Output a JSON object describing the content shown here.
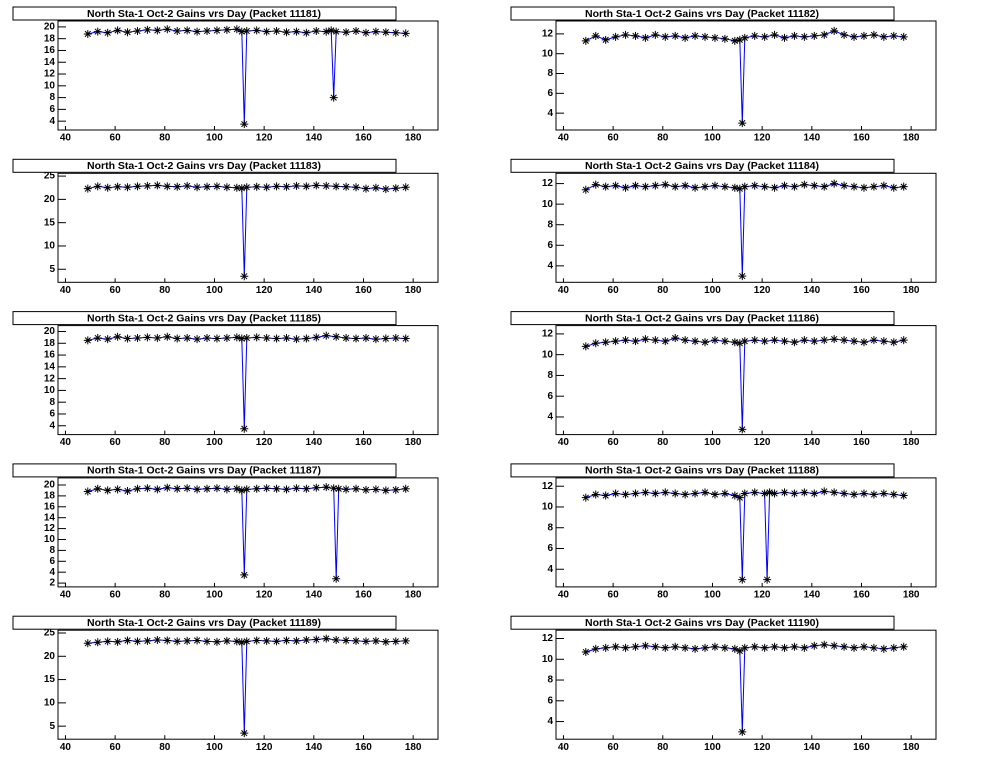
{
  "chart_data": [
    {
      "type": "line",
      "title": "North Sta-1 Oct-2 Gains vrs Day (Packet 11181)",
      "line_color": "#0000ff",
      "marker_color": "#000000",
      "x": [
        49,
        53,
        57,
        61,
        65,
        69,
        73,
        77,
        81,
        85,
        89,
        93,
        97,
        101,
        105,
        109,
        111,
        112,
        113,
        117,
        121,
        125,
        129,
        133,
        137,
        141,
        145,
        147,
        148,
        149,
        153,
        157,
        161,
        165,
        169,
        173,
        177
      ],
      "values": [
        18.8,
        19.2,
        19.0,
        19.4,
        19.1,
        19.3,
        19.5,
        19.4,
        19.6,
        19.3,
        19.4,
        19.2,
        19.3,
        19.4,
        19.5,
        19.6,
        19.2,
        3.5,
        19.3,
        19.4,
        19.2,
        19.3,
        19.1,
        19.2,
        19.0,
        19.3,
        19.2,
        19.4,
        8.0,
        19.2,
        19.1,
        19.3,
        19.0,
        19.2,
        19.1,
        19.0,
        18.9
      ],
      "xlim": [
        37,
        190
      ],
      "xticks": [
        40,
        60,
        80,
        100,
        120,
        140,
        160,
        180
      ],
      "ylim": [
        2.5,
        21
      ],
      "yticks": [
        4,
        6,
        8,
        10,
        12,
        14,
        16,
        18,
        20
      ]
    },
    {
      "type": "line",
      "title": "North Sta-1 Oct-2 Gains vrs Day (Packet 11182)",
      "line_color": "#0000ff",
      "marker_color": "#000000",
      "x": [
        49,
        53,
        57,
        61,
        65,
        69,
        73,
        77,
        81,
        85,
        89,
        93,
        97,
        101,
        105,
        109,
        111,
        112,
        113,
        117,
        121,
        125,
        129,
        133,
        137,
        141,
        145,
        149,
        153,
        157,
        161,
        165,
        169,
        173,
        177
      ],
      "values": [
        11.3,
        11.8,
        11.4,
        11.7,
        11.9,
        11.8,
        11.6,
        11.9,
        11.7,
        11.8,
        11.6,
        11.8,
        11.7,
        11.6,
        11.5,
        11.3,
        11.4,
        3.0,
        11.6,
        11.8,
        11.7,
        11.9,
        11.6,
        11.8,
        11.7,
        11.8,
        11.9,
        12.3,
        11.9,
        11.7,
        11.8,
        11.9,
        11.7,
        11.8,
        11.7
      ],
      "xlim": [
        37,
        190
      ],
      "xticks": [
        40,
        60,
        80,
        100,
        120,
        140,
        160,
        180
      ],
      "ylim": [
        2.3,
        13.3
      ],
      "yticks": [
        4,
        6,
        8,
        10,
        12
      ]
    },
    {
      "type": "line",
      "title": "North Sta-1 Oct-2 Gains vrs Day (Packet 11183)",
      "line_color": "#0000ff",
      "marker_color": "#000000",
      "x": [
        49,
        53,
        57,
        61,
        65,
        69,
        73,
        77,
        81,
        85,
        89,
        93,
        97,
        101,
        105,
        109,
        111,
        112,
        113,
        117,
        121,
        125,
        129,
        133,
        137,
        141,
        145,
        149,
        153,
        157,
        161,
        165,
        169,
        173,
        177
      ],
      "values": [
        22.3,
        22.8,
        22.5,
        22.7,
        22.6,
        22.8,
        22.9,
        23.0,
        22.8,
        22.7,
        22.9,
        22.6,
        22.7,
        22.8,
        22.6,
        22.5,
        22.4,
        3.5,
        22.6,
        22.7,
        22.6,
        22.8,
        22.7,
        22.9,
        22.8,
        23.0,
        22.9,
        22.8,
        22.7,
        22.6,
        22.3,
        22.5,
        22.2,
        22.4,
        22.6
      ],
      "xlim": [
        37,
        190
      ],
      "xticks": [
        40,
        60,
        80,
        100,
        120,
        140,
        160,
        180
      ],
      "ylim": [
        2.2,
        25.6
      ],
      "yticks": [
        5,
        10,
        15,
        20,
        25
      ]
    },
    {
      "type": "line",
      "title": "North Sta-1 Oct-2 Gains vrs Day (Packet 11184)",
      "line_color": "#0000ff",
      "marker_color": "#000000",
      "x": [
        49,
        53,
        57,
        61,
        65,
        69,
        73,
        77,
        81,
        85,
        89,
        93,
        97,
        101,
        105,
        109,
        111,
        112,
        113,
        117,
        121,
        125,
        129,
        133,
        137,
        141,
        145,
        149,
        153,
        157,
        161,
        165,
        169,
        173,
        177
      ],
      "values": [
        11.4,
        11.9,
        11.7,
        11.8,
        11.6,
        11.8,
        11.7,
        11.8,
        11.9,
        11.7,
        11.8,
        11.6,
        11.7,
        11.8,
        11.7,
        11.6,
        11.5,
        3.0,
        11.7,
        11.8,
        11.7,
        11.6,
        11.8,
        11.7,
        11.9,
        11.8,
        11.7,
        12.0,
        11.8,
        11.7,
        11.6,
        11.7,
        11.8,
        11.6,
        11.7
      ],
      "xlim": [
        37,
        190
      ],
      "xticks": [
        40,
        60,
        80,
        100,
        120,
        140,
        160,
        180
      ],
      "ylim": [
        2.4,
        13.0
      ],
      "yticks": [
        4,
        6,
        8,
        10,
        12
      ]
    },
    {
      "type": "line",
      "title": "North Sta-1 Oct-2 Gains vrs Day (Packet 11185)",
      "line_color": "#0000ff",
      "marker_color": "#000000",
      "x": [
        49,
        53,
        57,
        61,
        65,
        69,
        73,
        77,
        81,
        85,
        89,
        93,
        97,
        101,
        105,
        109,
        111,
        112,
        113,
        117,
        121,
        125,
        129,
        133,
        137,
        141,
        145,
        149,
        153,
        157,
        161,
        165,
        169,
        173,
        177
      ],
      "values": [
        18.5,
        18.9,
        18.7,
        19.1,
        18.8,
        18.9,
        19.0,
        18.9,
        19.1,
        18.8,
        18.9,
        18.7,
        18.9,
        18.8,
        18.9,
        19.0,
        18.8,
        3.5,
        18.9,
        19.0,
        18.9,
        18.8,
        18.9,
        18.7,
        18.8,
        19.0,
        19.3,
        19.1,
        18.9,
        18.8,
        18.9,
        18.7,
        18.8,
        18.9,
        18.8
      ],
      "xlim": [
        37,
        190
      ],
      "xticks": [
        40,
        60,
        80,
        100,
        120,
        140,
        160,
        180
      ],
      "ylim": [
        2.5,
        21
      ],
      "yticks": [
        4,
        6,
        8,
        10,
        12,
        14,
        16,
        18,
        20
      ]
    },
    {
      "type": "line",
      "title": "North Sta-1 Oct-2 Gains vrs Day (Packet 11186)",
      "line_color": "#0000ff",
      "marker_color": "#000000",
      "x": [
        49,
        53,
        57,
        61,
        65,
        69,
        73,
        77,
        81,
        85,
        89,
        93,
        97,
        101,
        105,
        109,
        111,
        112,
        113,
        117,
        121,
        125,
        129,
        133,
        137,
        141,
        145,
        149,
        153,
        157,
        161,
        165,
        169,
        173,
        177
      ],
      "values": [
        10.8,
        11.1,
        11.2,
        11.3,
        11.4,
        11.3,
        11.5,
        11.4,
        11.3,
        11.6,
        11.4,
        11.3,
        11.2,
        11.4,
        11.3,
        11.2,
        11.1,
        2.8,
        11.3,
        11.4,
        11.3,
        11.4,
        11.3,
        11.2,
        11.4,
        11.3,
        11.4,
        11.5,
        11.4,
        11.3,
        11.2,
        11.4,
        11.3,
        11.2,
        11.4
      ],
      "xlim": [
        37,
        190
      ],
      "xticks": [
        40,
        60,
        80,
        100,
        120,
        140,
        160,
        180
      ],
      "ylim": [
        2.3,
        12.8
      ],
      "yticks": [
        4,
        6,
        8,
        10,
        12
      ]
    },
    {
      "type": "line",
      "title": "North Sta-1 Oct-2 Gains vrs Day (Packet 11187)",
      "line_color": "#0000ff",
      "marker_color": "#000000",
      "x": [
        49,
        53,
        57,
        61,
        65,
        69,
        73,
        77,
        81,
        85,
        89,
        93,
        97,
        101,
        105,
        109,
        111,
        112,
        113,
        117,
        121,
        125,
        129,
        133,
        137,
        141,
        145,
        148,
        149,
        150,
        153,
        157,
        161,
        165,
        169,
        173,
        177
      ],
      "values": [
        18.8,
        19.3,
        19.0,
        19.2,
        18.9,
        19.3,
        19.4,
        19.2,
        19.5,
        19.3,
        19.4,
        19.2,
        19.3,
        19.4,
        19.2,
        19.3,
        19.0,
        3.5,
        19.2,
        19.3,
        19.4,
        19.3,
        19.2,
        19.4,
        19.3,
        19.5,
        19.6,
        19.4,
        2.8,
        19.3,
        19.2,
        19.3,
        19.1,
        19.2,
        19.0,
        19.1,
        19.3
      ],
      "xlim": [
        37,
        190
      ],
      "xticks": [
        40,
        60,
        80,
        100,
        120,
        140,
        160,
        180
      ],
      "ylim": [
        1.3,
        21.3
      ],
      "yticks": [
        2,
        4,
        6,
        8,
        10,
        12,
        14,
        16,
        18,
        20
      ]
    },
    {
      "type": "line",
      "title": "North Sta-1 Oct-2 Gains vrs Day (Packet 11188)",
      "line_color": "#0000ff",
      "marker_color": "#000000",
      "x": [
        49,
        53,
        57,
        61,
        65,
        69,
        73,
        77,
        81,
        85,
        89,
        93,
        97,
        101,
        105,
        109,
        111,
        112,
        113,
        117,
        121,
        122,
        123,
        125,
        129,
        133,
        137,
        141,
        145,
        149,
        153,
        157,
        161,
        165,
        169,
        173,
        177
      ],
      "values": [
        10.9,
        11.2,
        11.1,
        11.3,
        11.2,
        11.3,
        11.4,
        11.3,
        11.4,
        11.3,
        11.2,
        11.3,
        11.4,
        11.2,
        11.3,
        11.1,
        10.9,
        3.0,
        11.3,
        11.4,
        11.3,
        3.0,
        11.4,
        11.3,
        11.4,
        11.3,
        11.4,
        11.3,
        11.5,
        11.4,
        11.3,
        11.2,
        11.3,
        11.2,
        11.3,
        11.2,
        11.1
      ],
      "xlim": [
        37,
        190
      ],
      "xticks": [
        40,
        60,
        80,
        100,
        120,
        140,
        160,
        180
      ],
      "ylim": [
        2.3,
        12.8
      ],
      "yticks": [
        4,
        6,
        8,
        10,
        12
      ]
    },
    {
      "type": "line",
      "title": "North Sta-1 Oct-2 Gains vrs Day (Packet 11189)",
      "line_color": "#0000ff",
      "marker_color": "#000000",
      "x": [
        49,
        53,
        57,
        61,
        65,
        69,
        73,
        77,
        81,
        85,
        89,
        93,
        97,
        101,
        105,
        109,
        111,
        112,
        113,
        117,
        121,
        125,
        129,
        133,
        137,
        141,
        145,
        149,
        153,
        157,
        161,
        165,
        169,
        173,
        177
      ],
      "values": [
        22.8,
        23.0,
        23.2,
        23.1,
        23.4,
        23.2,
        23.3,
        23.5,
        23.4,
        23.2,
        23.3,
        23.4,
        23.2,
        23.1,
        23.3,
        23.2,
        23.0,
        3.5,
        23.2,
        23.4,
        23.3,
        23.2,
        23.4,
        23.3,
        23.5,
        23.6,
        23.8,
        23.5,
        23.4,
        23.3,
        23.2,
        23.3,
        23.1,
        23.2,
        23.3
      ],
      "xlim": [
        37,
        190
      ],
      "xticks": [
        40,
        60,
        80,
        100,
        120,
        140,
        160,
        180
      ],
      "ylim": [
        2.2,
        25.6
      ],
      "yticks": [
        5,
        10,
        15,
        20,
        25
      ]
    },
    {
      "type": "line",
      "title": "North Sta-1 Oct-2 Gains vrs Day (Packet 11190)",
      "line_color": "#0000ff",
      "marker_color": "#000000",
      "x": [
        49,
        53,
        57,
        61,
        65,
        69,
        73,
        77,
        81,
        85,
        89,
        93,
        97,
        101,
        105,
        109,
        111,
        112,
        113,
        117,
        121,
        125,
        129,
        133,
        137,
        141,
        145,
        149,
        153,
        157,
        161,
        165,
        169,
        173,
        177
      ],
      "values": [
        10.7,
        11.0,
        11.1,
        11.2,
        11.1,
        11.2,
        11.3,
        11.2,
        11.1,
        11.2,
        11.1,
        11.0,
        11.1,
        11.2,
        11.1,
        11.0,
        10.8,
        3.0,
        11.1,
        11.2,
        11.1,
        11.2,
        11.1,
        11.2,
        11.1,
        11.3,
        11.4,
        11.3,
        11.2,
        11.1,
        11.2,
        11.1,
        11.0,
        11.1,
        11.2
      ],
      "xlim": [
        37,
        190
      ],
      "xticks": [
        40,
        60,
        80,
        100,
        120,
        140,
        160,
        180
      ],
      "ylim": [
        2.3,
        12.8
      ],
      "yticks": [
        4,
        6,
        8,
        10,
        12
      ]
    }
  ]
}
